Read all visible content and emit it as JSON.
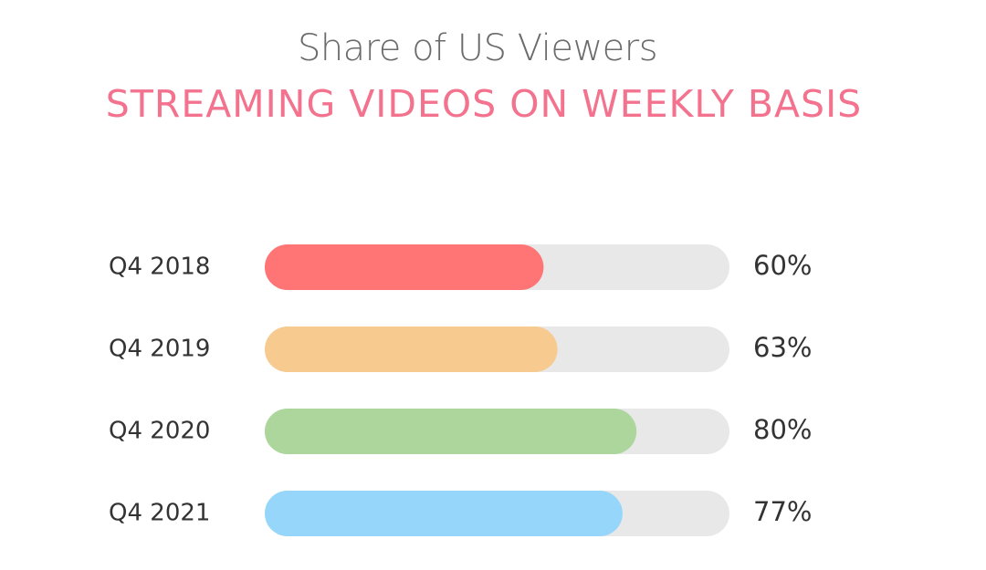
{
  "chart_data": {
    "type": "bar",
    "orientation": "horizontal",
    "title": "Share of US Viewers",
    "subtitle": "STREAMING VIDEOS ON WEEKLY BASIS",
    "categories": [
      "Q4 2018",
      "Q4 2019",
      "Q4 2020",
      "Q4 2021"
    ],
    "values": [
      60,
      63,
      80,
      77
    ],
    "value_labels": [
      "60%",
      "63%",
      "80%",
      "77%"
    ],
    "xlim": [
      0,
      100
    ],
    "colors": [
      "#ff7575",
      "#f7ca8f",
      "#acd69c",
      "#96d6fb"
    ],
    "track_color": "#e8e8e8",
    "grid": false,
    "legend": "none"
  }
}
